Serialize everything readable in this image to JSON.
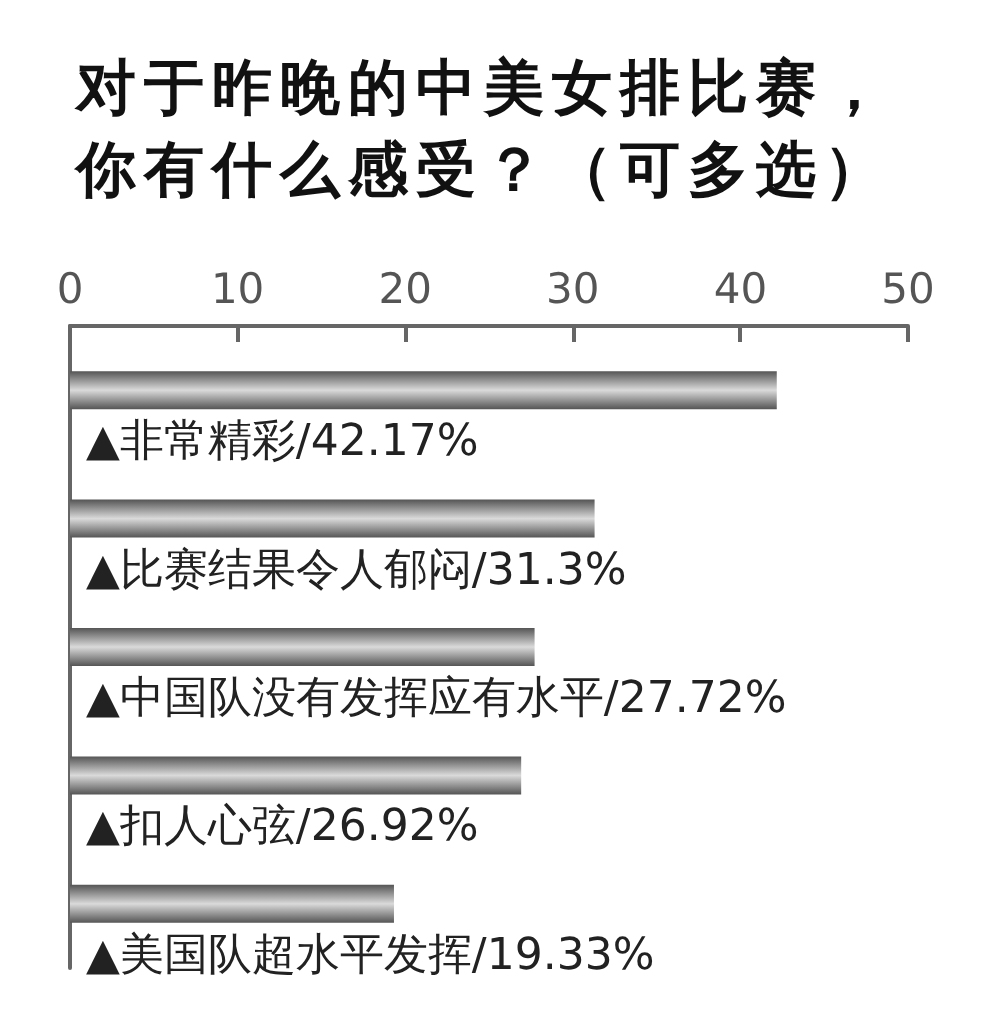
{
  "chart_data": {
    "type": "bar",
    "orientation": "horizontal",
    "title": "对于昨晚的中美女排比赛，你有什么感受？（可多选）",
    "categories": [
      "▲非常精彩/42.17%",
      "▲比赛结果令人郁闷/31.3%",
      "▲中国队没有发挥应有水平/27.72%",
      "▲扣人心弦/26.92%",
      "▲美国队超水平发挥/19.33%"
    ],
    "values": [
      42.17,
      31.3,
      27.72,
      26.92,
      19.33
    ],
    "color": "#555555",
    "xlim": [
      0,
      50
    ],
    "xticks": [
      0,
      10,
      20,
      30,
      40,
      50
    ],
    "grid": false
  }
}
